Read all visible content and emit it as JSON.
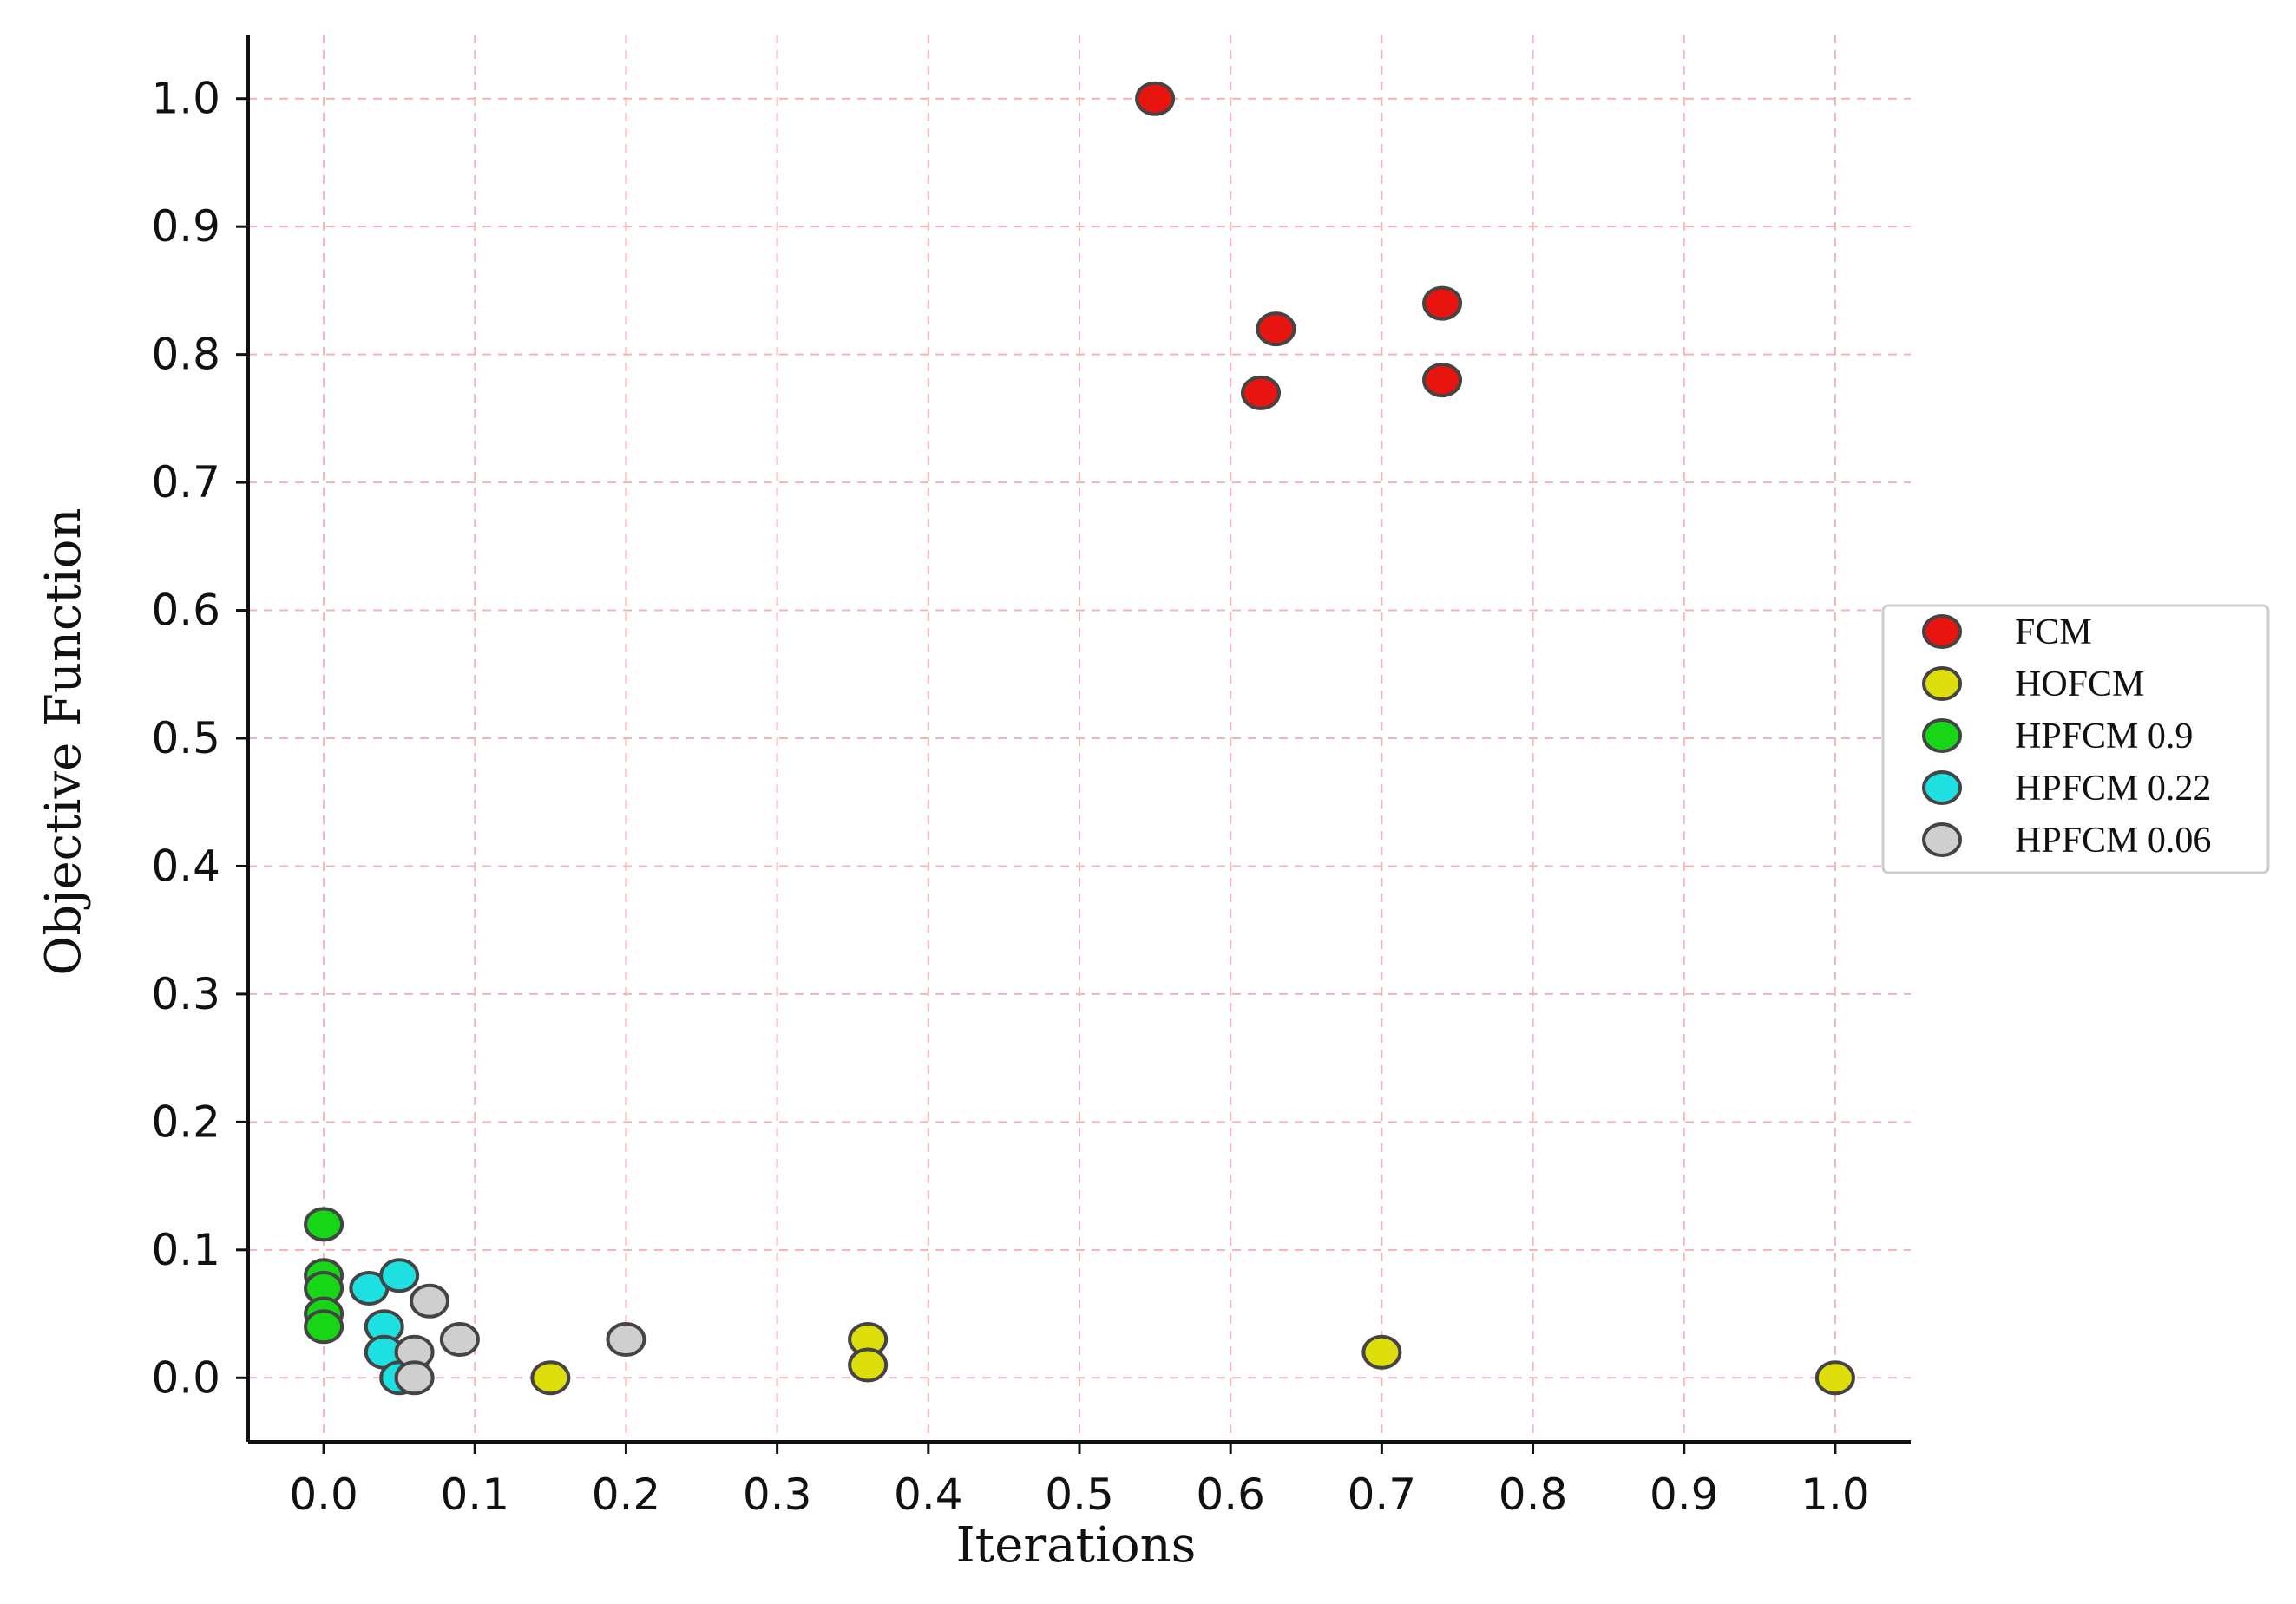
{
  "chart_data": {
    "type": "scatter",
    "title": "",
    "xlabel": "Iterations",
    "ylabel": "Objective Function",
    "xlim": [
      -0.05,
      1.05
    ],
    "ylim": [
      -0.05,
      1.05
    ],
    "xticks": [
      "0.0",
      "0.1",
      "0.2",
      "0.3",
      "0.4",
      "0.5",
      "0.6",
      "0.7",
      "0.8",
      "0.9",
      "1.0"
    ],
    "yticks": [
      "0.0",
      "0.1",
      "0.2",
      "0.3",
      "0.4",
      "0.5",
      "0.6",
      "0.7",
      "0.8",
      "0.9",
      "1.0"
    ],
    "grid": true,
    "legend_position": "center-right",
    "series": [
      {
        "name": "FCM",
        "color": "#e8140f",
        "points": [
          [
            0.55,
            1.0
          ],
          [
            0.63,
            0.82
          ],
          [
            0.62,
            0.77
          ],
          [
            0.74,
            0.84
          ],
          [
            0.74,
            0.78
          ]
        ]
      },
      {
        "name": "HOFCM",
        "color": "#dede0c",
        "points": [
          [
            0.15,
            0.0
          ],
          [
            0.36,
            0.03
          ],
          [
            0.36,
            0.01
          ],
          [
            0.7,
            0.02
          ],
          [
            1.0,
            0.0
          ]
        ]
      },
      {
        "name": "HPFCM 0.9",
        "color": "#16d616",
        "points": [
          [
            0.0,
            0.12
          ],
          [
            0.0,
            0.08
          ],
          [
            0.0,
            0.07
          ],
          [
            0.0,
            0.05
          ],
          [
            0.0,
            0.04
          ]
        ]
      },
      {
        "name": "HPFCM 0.22",
        "color": "#1ee0e0",
        "points": [
          [
            0.03,
            0.07
          ],
          [
            0.05,
            0.08
          ],
          [
            0.04,
            0.04
          ],
          [
            0.04,
            0.02
          ],
          [
            0.05,
            0.0
          ]
        ]
      },
      {
        "name": "HPFCM 0.06",
        "color": "#cfcfcf",
        "points": [
          [
            0.07,
            0.06
          ],
          [
            0.09,
            0.03
          ],
          [
            0.06,
            0.02
          ],
          [
            0.06,
            0.0
          ],
          [
            0.2,
            0.03
          ]
        ]
      }
    ],
    "style": {
      "grid_color": "#f4b4b4",
      "axis_color": "#111111",
      "marker_edge_color": "#444444",
      "legend_border_color": "#cccccc"
    }
  }
}
